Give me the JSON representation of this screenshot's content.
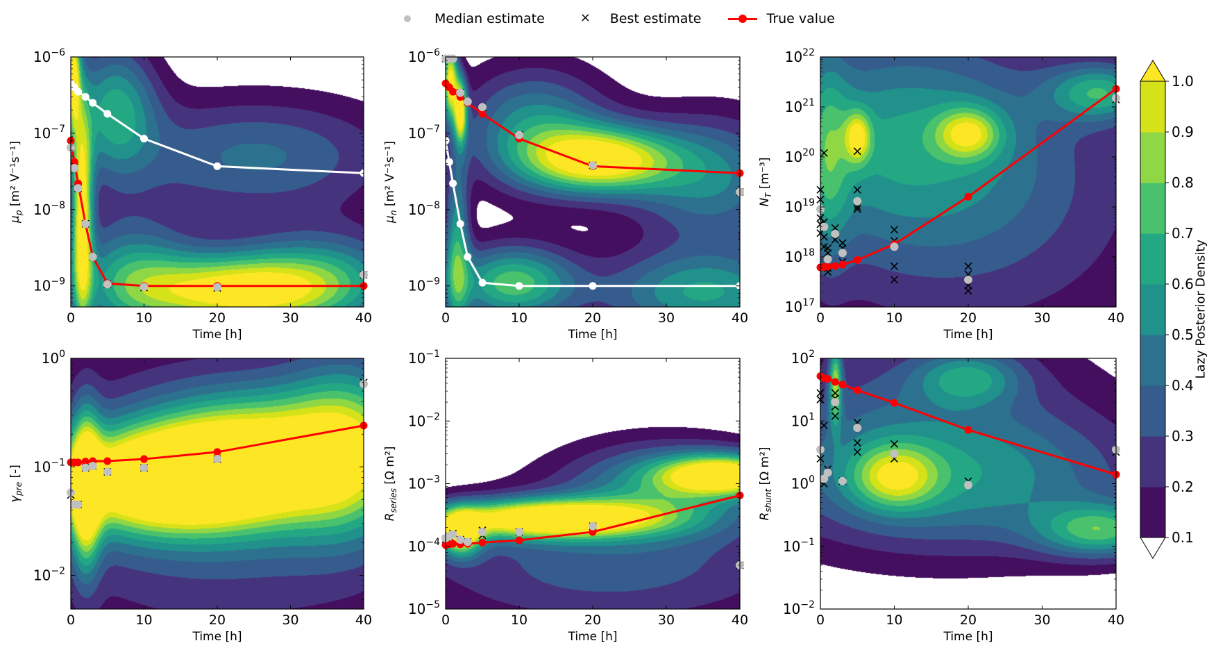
{
  "legend": {
    "median_label": "Median estimate",
    "best_label": "Best estimate",
    "true_label": "True value",
    "median_color": "#c0c0c0",
    "best_color": "#000000",
    "true_color": "#ff0000",
    "alt_median_color": "#ffffff"
  },
  "colorbar": {
    "label": "Lazy Posterior Density",
    "ticks": [
      "0.1",
      "0.2",
      "0.3",
      "0.4",
      "0.5",
      "0.6",
      "0.7",
      "0.8",
      "0.9",
      "1.0"
    ],
    "levels": [
      0.1,
      0.2,
      0.3,
      0.4,
      0.5,
      0.6,
      0.7,
      0.8,
      0.9,
      1.0
    ],
    "colors": [
      "#440f5e",
      "#46337e",
      "#365c8d",
      "#2c728e",
      "#21918c",
      "#24a884",
      "#4ac16d",
      "#8fd744",
      "#d5e21a",
      "#fde725"
    ],
    "extend_min_color": "#ffffff",
    "extend_max_color": "#fde725",
    "colormap": "viridis"
  },
  "chart_data": [
    {
      "type": "contour+line",
      "panel": "mu_p",
      "ylabel": "μp [m² V⁻¹s⁻¹]",
      "ylabel_main": "μ",
      "ylabel_sub": "p",
      "ylabel_rest": " [m² V⁻¹s⁻¹]",
      "xlabel": "Time [h]",
      "xlim": [
        0,
        40
      ],
      "ylim": [
        5.3e-10,
        1e-06
      ],
      "yscale": "log",
      "xticks": [
        0,
        10,
        20,
        30,
        40
      ],
      "yticks": [
        1e-09,
        1e-08,
        1e-07,
        1e-06
      ],
      "ytick_exps": [
        "−9",
        "−8",
        "−7",
        "−6"
      ],
      "time": [
        0,
        0.5,
        1,
        2,
        3,
        5,
        10,
        20,
        40
      ],
      "true_value": [
        8e-08,
        4.2e-08,
        2.2e-08,
        6.5e-09,
        2.4e-09,
        1.08e-09,
        1e-09,
        1e-09,
        1e-09
      ],
      "other_true_value": [
        4.5e-07,
        4e-07,
        3.5e-07,
        3e-07,
        2.5e-07,
        1.8e-07,
        8.5e-08,
        3.7e-08,
        3e-08
      ],
      "median_estimate": [
        6.5e-08,
        3.5e-08,
        1.9e-08,
        6.5e-09,
        2.4e-09,
        1.05e-09,
        9.7e-10,
        9.6e-10,
        1.4e-09
      ],
      "best_estimate": [
        [
          0,
          7e-08
        ],
        [
          0.5,
          3.6e-08
        ],
        [
          1,
          1.9e-08
        ],
        [
          2,
          6.5e-09
        ],
        [
          3,
          2.4e-09
        ],
        [
          5,
          1.05e-09
        ],
        [
          10,
          9.5e-10
        ],
        [
          20,
          9.4e-10
        ],
        [
          40,
          1.4e-09
        ]
      ],
      "density_model": [
        {
          "t": 1.5,
          "v": 8e-09,
          "st": 1.0,
          "sv": 1.0,
          "a": 1.0
        },
        {
          "t": 22,
          "v": 8.5e-10,
          "st": 9,
          "sv": 0.35,
          "a": 1.0
        },
        {
          "t": 8,
          "v": 1.3e-09,
          "st": 6,
          "sv": 0.55,
          "a": 0.55
        },
        {
          "t": 35,
          "v": 1.2e-09,
          "st": 8,
          "sv": 0.45,
          "a": 0.55
        },
        {
          "t": 6,
          "v": 2.2e-07,
          "st": 4,
          "sv": 0.6,
          "a": 0.6
        },
        {
          "t": 25,
          "v": 5e-08,
          "st": 14,
          "sv": 0.55,
          "a": 0.42
        },
        {
          "t": 0.3,
          "v": 6e-07,
          "st": 0.7,
          "sv": 0.5,
          "a": 0.9
        }
      ]
    },
    {
      "type": "contour+line",
      "panel": "mu_n",
      "ylabel_main": "μ",
      "ylabel_sub": "n",
      "ylabel_rest": " [m² V⁻¹s⁻¹]",
      "xlabel": "Time [h]",
      "xlim": [
        0,
        40
      ],
      "ylim": [
        5.3e-10,
        1e-06
      ],
      "yscale": "log",
      "xticks": [
        0,
        10,
        20,
        30,
        40
      ],
      "yticks": [
        1e-09,
        1e-08,
        1e-07,
        1e-06
      ],
      "ytick_exps": [
        "−9",
        "−8",
        "−7",
        "−6"
      ],
      "time": [
        0,
        0.5,
        1,
        2,
        3,
        5,
        10,
        20,
        40
      ],
      "true_value": [
        4.5e-07,
        4e-07,
        3.5e-07,
        3e-07,
        2.5e-07,
        1.8e-07,
        8.5e-08,
        3.7e-08,
        3e-08
      ],
      "other_true_value": [
        8e-08,
        4.2e-08,
        2.2e-08,
        6.5e-09,
        2.4e-09,
        1.1e-09,
        1e-09,
        1e-09,
        1e-09
      ],
      "median_estimate": [
        9.5e-07,
        9.5e-07,
        9.5e-07,
        3.4e-07,
        2.6e-07,
        2.2e-07,
        9.5e-08,
        3.8e-08,
        1.7e-08
      ],
      "best_estimate": [
        [
          0,
          9.5e-07
        ],
        [
          0.5,
          9.5e-07
        ],
        [
          2,
          3.4e-07
        ],
        [
          3,
          2.6e-07
        ],
        [
          5,
          2.2e-07
        ],
        [
          5,
          1.9e-07
        ],
        [
          10,
          9.5e-08
        ],
        [
          20,
          3.8e-08
        ],
        [
          40,
          1.7e-08
        ]
      ],
      "density_model": [
        {
          "t": 0.6,
          "v": 5e-07,
          "st": 0.7,
          "sv": 0.35,
          "a": 1.0
        },
        {
          "t": 2,
          "v": 2e-07,
          "st": 0.6,
          "sv": 0.3,
          "a": 0.95
        },
        {
          "t": 21,
          "v": 4.5e-08,
          "st": 7,
          "sv": 0.3,
          "a": 1.0
        },
        {
          "t": 12,
          "v": 1.2e-07,
          "st": 7,
          "sv": 0.55,
          "a": 0.55
        },
        {
          "t": 36,
          "v": 2.5e-08,
          "st": 8,
          "sv": 0.6,
          "a": 0.5
        },
        {
          "t": 9,
          "v": 1.1e-09,
          "st": 6,
          "sv": 0.35,
          "a": 0.75
        },
        {
          "t": 35,
          "v": 8e-10,
          "st": 10,
          "sv": 0.4,
          "a": 0.6
        },
        {
          "t": 1.5,
          "v": 3e-09,
          "st": 1.2,
          "sv": 0.8,
          "a": 0.6
        }
      ]
    },
    {
      "type": "contour+line",
      "panel": "N_T",
      "ylabel_main": "N",
      "ylabel_sub": "T",
      "ylabel_rest": " [m⁻³]",
      "xlabel": "Time [h]",
      "xlim": [
        0,
        40
      ],
      "ylim": [
        1e+17,
        1e+22
      ],
      "yscale": "log",
      "xticks": [
        0,
        10,
        20,
        30,
        40
      ],
      "yticks": [
        1e+17,
        1e+18,
        1e+19,
        1e+20,
        1e+21,
        1e+22
      ],
      "ytick_exps": [
        "17",
        "18",
        "19",
        "20",
        "21",
        "22"
      ],
      "time": [
        0,
        0.5,
        1,
        2,
        3,
        5,
        10,
        20,
        40
      ],
      "true_value": [
        6.2e+17,
        6.3e+17,
        6.4e+17,
        6.6e+17,
        7e+17,
        8.7e+17,
        1.8e+18,
        1.6e+19,
        2.3e+21
      ],
      "median_estimate": [
        9e+18,
        4e+18,
        9e+17,
        2.9e+18,
        1.2e+18,
        1.3e+19,
        1.6e+18,
        3.5e+17,
        1.5e+21
      ],
      "best_estimate": [
        [
          0,
          2.2e+19
        ],
        [
          0,
          1.4e+19
        ],
        [
          0,
          6e+18
        ],
        [
          0,
          4.5e+18
        ],
        [
          0,
          3e+18
        ],
        [
          0.5,
          1.2e+20
        ],
        [
          0.5,
          5e+18
        ],
        [
          0.5,
          2.5e+18
        ],
        [
          0.5,
          1.6e+18
        ],
        [
          1,
          1.5e+18
        ],
        [
          1,
          1.2e+18
        ],
        [
          1,
          6e+17
        ],
        [
          1,
          5e+17
        ],
        [
          2,
          3.8e+18
        ],
        [
          2,
          2.2e+18
        ],
        [
          3,
          1.9e+18
        ],
        [
          3,
          1.5e+18
        ],
        [
          3,
          8e+17
        ],
        [
          5,
          1.3e+20
        ],
        [
          5,
          2.2e+19
        ],
        [
          5,
          1e+19
        ],
        [
          5,
          9e+18
        ],
        [
          10,
          3.5e+18
        ],
        [
          10,
          2.1e+18
        ],
        [
          10,
          6.5e+17
        ],
        [
          10,
          3.5e+17
        ],
        [
          20,
          6.5e+17
        ],
        [
          20,
          4.5e+17
        ],
        [
          20,
          2.7e+17
        ],
        [
          20,
          2.1e+17
        ],
        [
          40,
          1.4e+21
        ]
      ],
      "density_model": [
        {
          "t": 10,
          "v": 3e+20,
          "st": 14,
          "sv": 1.5,
          "a": 0.42
        },
        {
          "t": 20,
          "v": 3e+20,
          "st": 3,
          "sv": 0.35,
          "a": 0.55
        },
        {
          "t": 5,
          "v": 2.5e+20,
          "st": 1.2,
          "sv": 0.35,
          "a": 0.55
        },
        {
          "t": 38,
          "v": 2e+21,
          "st": 5,
          "sv": 0.4,
          "a": 0.55
        },
        {
          "t": 20,
          "v": 1e+19,
          "st": 20,
          "sv": 2.2,
          "a": 0.3
        },
        {
          "t": 1,
          "v": 1e+20,
          "st": 2,
          "sv": 1.5,
          "a": 0.32
        }
      ]
    },
    {
      "type": "contour+line",
      "panel": "gamma_pre",
      "ylabel_main": "γ",
      "ylabel_sub": "pre",
      "ylabel_rest": " [-]",
      "xlabel": "Time [h]",
      "xlim": [
        0,
        40
      ],
      "ylim": [
        0.0049,
        1
      ],
      "yscale": "log",
      "xticks": [
        0,
        10,
        20,
        30,
        40
      ],
      "yticks": [
        0.01,
        0.1,
        1
      ],
      "ytick_exps": [
        "−2",
        "−1",
        "0"
      ],
      "time": [
        0,
        0.5,
        1,
        2,
        3,
        5,
        10,
        20,
        40
      ],
      "true_value": [
        0.11,
        0.11,
        0.11,
        0.112,
        0.113,
        0.113,
        0.118,
        0.137,
        0.24
      ],
      "median_estimate": [
        0.058,
        0.045,
        0.045,
        0.098,
        0.102,
        0.09,
        0.098,
        0.118,
        0.58
      ],
      "best_estimate": [
        [
          0,
          0.055
        ],
        [
          0.5,
          0.045
        ],
        [
          1,
          0.045
        ],
        [
          2,
          0.098
        ],
        [
          3,
          0.102
        ],
        [
          5,
          0.09
        ],
        [
          10,
          0.098
        ],
        [
          20,
          0.118
        ],
        [
          40,
          0.6
        ]
      ],
      "density_model": [
        {
          "t": 12,
          "v": 0.075,
          "st": 10,
          "sv": 0.32,
          "a": 1.15
        },
        {
          "t": 25,
          "v": 0.12,
          "st": 10,
          "sv": 0.4,
          "a": 0.9
        },
        {
          "t": 38,
          "v": 0.15,
          "st": 6,
          "sv": 0.55,
          "a": 0.65
        },
        {
          "t": 2,
          "v": 0.06,
          "st": 1.4,
          "sv": 0.5,
          "a": 0.9
        },
        {
          "t": 20,
          "v": 0.05,
          "st": 22,
          "sv": 1.0,
          "a": 0.35
        }
      ]
    },
    {
      "type": "contour+line",
      "panel": "R_series",
      "ylabel_main": "R",
      "ylabel_sub": "series",
      "ylabel_rest": " [Ω m²]",
      "xlabel": "Time [h]",
      "xlim": [
        0,
        40
      ],
      "ylim": [
        1e-05,
        0.1
      ],
      "yscale": "log",
      "xticks": [
        0,
        10,
        20,
        30,
        40
      ],
      "yticks": [
        1e-05,
        0.0001,
        0.001,
        0.01,
        0.1
      ],
      "ytick_exps": [
        "−5",
        "−4",
        "−3",
        "−2",
        "−1"
      ],
      "time": [
        0,
        0.5,
        1,
        2,
        3,
        5,
        10,
        20,
        40
      ],
      "true_value": [
        0.000105,
        0.000108,
        0.00011,
        0.000108,
        0.00011,
        0.000115,
        0.000125,
        0.00017,
        0.00065
      ],
      "median_estimate": [
        0.000135,
        0.000145,
        0.000155,
        0.000128,
        0.000118,
        0.00017,
        0.00017,
        0.00021,
        5e-05
      ],
      "best_estimate": [
        [
          0,
          0.00013
        ],
        [
          0.5,
          0.000145
        ],
        [
          1,
          0.00016
        ],
        [
          2,
          0.000128
        ],
        [
          3,
          0.000118
        ],
        [
          5,
          0.00015
        ],
        [
          5,
          0.00018
        ],
        [
          10,
          0.00017
        ],
        [
          20,
          0.00021
        ],
        [
          40,
          5e-05
        ]
      ],
      "density_model": [
        {
          "t": 14,
          "v": 0.00028,
          "st": 11,
          "sv": 0.22,
          "a": 1.15
        },
        {
          "t": 38,
          "v": 0.0014,
          "st": 6,
          "sv": 0.22,
          "a": 1.0
        },
        {
          "t": 2,
          "v": 0.00016,
          "st": 2,
          "sv": 0.25,
          "a": 0.9
        },
        {
          "t": 22,
          "v": 5e-05,
          "st": 20,
          "sv": 0.75,
          "a": 0.35
        },
        {
          "t": 30,
          "v": 0.001,
          "st": 10,
          "sv": 0.5,
          "a": 0.5
        }
      ]
    },
    {
      "type": "contour+line",
      "panel": "R_shunt",
      "ylabel_main": "R",
      "ylabel_sub": "shunt",
      "ylabel_rest": " [Ω m²]",
      "xlabel": "Time [h]",
      "xlim": [
        0,
        40
      ],
      "ylim": [
        0.01,
        100.0
      ],
      "yscale": "log",
      "xticks": [
        0,
        10,
        20,
        30,
        40
      ],
      "yticks": [
        0.01,
        0.1,
        1,
        10,
        100
      ],
      "ytick_exps": [
        "−2",
        "−1",
        "0",
        "1",
        "2"
      ],
      "time": [
        0,
        0.5,
        1,
        2,
        3,
        5,
        10,
        20,
        40
      ],
      "true_value": [
        52,
        48,
        47,
        42,
        38,
        31,
        19.5,
        7.2,
        1.4
      ],
      "median_estimate": [
        3.5,
        1.2,
        1.5,
        20,
        1.1,
        7.8,
        3.0,
        0.95,
        3.5
      ],
      "best_estimate": [
        [
          0,
          28
        ],
        [
          0,
          22
        ],
        [
          0,
          2.5
        ],
        [
          0.5,
          8.5
        ],
        [
          0.5,
          1.0
        ],
        [
          1,
          1.7
        ],
        [
          2,
          28
        ],
        [
          2,
          23
        ],
        [
          2,
          17
        ],
        [
          2,
          12
        ],
        [
          3,
          1.1
        ],
        [
          5,
          9.5
        ],
        [
          5,
          4.5
        ],
        [
          5,
          3.2
        ],
        [
          10,
          4.3
        ],
        [
          10,
          2.5
        ],
        [
          20,
          1.1
        ],
        [
          40,
          3.2
        ]
      ],
      "density_model": [
        {
          "t": 10,
          "v": 1.3,
          "st": 4,
          "sv": 0.35,
          "a": 0.55
        },
        {
          "t": 38,
          "v": 0.18,
          "st": 6,
          "sv": 0.3,
          "a": 0.6
        },
        {
          "t": 2,
          "v": 40,
          "st": 0.6,
          "sv": 0.45,
          "a": 0.65
        },
        {
          "t": 20,
          "v": 1.0,
          "st": 18,
          "sv": 0.8,
          "a": 0.4
        },
        {
          "t": 20,
          "v": 50,
          "st": 5,
          "sv": 0.3,
          "a": 0.42
        },
        {
          "t": 12,
          "v": 10,
          "st": 18,
          "sv": 1.2,
          "a": 0.3
        }
      ]
    }
  ]
}
